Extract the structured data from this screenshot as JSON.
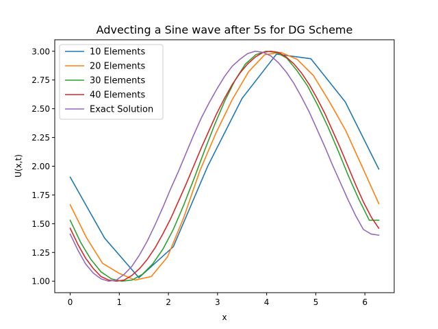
{
  "chart_data": {
    "type": "line",
    "title": "Advecting a Sine wave after 5s for DG Scheme",
    "xlabel": "x",
    "ylabel": "U(x,t)",
    "xlim": [
      -0.3142,
      6.597
    ],
    "ylim": [
      0.9,
      3.1
    ],
    "xticks": [
      0,
      1,
      2,
      3,
      4,
      5,
      6
    ],
    "xtick_labels": [
      "0",
      "1",
      "2",
      "3",
      "4",
      "5",
      "6"
    ],
    "yticks": [
      1.0,
      1.25,
      1.5,
      1.75,
      2.0,
      2.25,
      2.5,
      2.75,
      3.0
    ],
    "ytick_labels": [
      "1.00",
      "1.25",
      "1.50",
      "1.75",
      "2.00",
      "2.25",
      "2.50",
      "2.75",
      "3.00"
    ],
    "grid": false,
    "legend_position": "top-left",
    "series": [
      {
        "name": "10 Elements",
        "color": "#1f77b4",
        "x": [
          0,
          0.7,
          1.4,
          2.1,
          2.8,
          3.5,
          4.2,
          4.9,
          5.6,
          6.283
        ],
        "y": [
          1.905,
          1.375,
          1.03,
          1.3,
          2.0,
          2.59,
          2.975,
          2.935,
          2.56,
          1.975
        ]
      },
      {
        "name": "20 Elements",
        "color": "#ff7f0e",
        "x": [
          0,
          0.33,
          0.66,
          0.99,
          1.32,
          1.65,
          1.98,
          2.31,
          2.64,
          2.97,
          3.3,
          3.63,
          3.96,
          4.29,
          4.62,
          4.95,
          5.28,
          5.61,
          5.94,
          6.283
        ],
        "y": [
          1.665,
          1.38,
          1.155,
          1.07,
          1.01,
          1.04,
          1.21,
          1.55,
          1.96,
          2.29,
          2.58,
          2.82,
          2.97,
          2.99,
          2.93,
          2.79,
          2.56,
          2.31,
          2.0,
          1.675
        ]
      },
      {
        "name": "30 Elements",
        "color": "#2ca02c",
        "x": [
          0,
          0.21,
          0.42,
          0.63,
          0.84,
          1.05,
          1.26,
          1.47,
          1.68,
          1.89,
          2.1,
          2.31,
          2.52,
          2.73,
          2.94,
          3.15,
          3.36,
          3.57,
          3.78,
          3.99,
          4.2,
          4.41,
          4.62,
          4.83,
          5.04,
          5.25,
          5.46,
          5.67,
          5.88,
          6.09,
          6.283
        ],
        "y": [
          1.53,
          1.34,
          1.19,
          1.08,
          1.02,
          1.0,
          1.01,
          1.06,
          1.15,
          1.28,
          1.45,
          1.66,
          1.89,
          2.13,
          2.36,
          2.57,
          2.75,
          2.89,
          2.97,
          3.0,
          2.99,
          2.94,
          2.83,
          2.7,
          2.53,
          2.34,
          2.13,
          1.91,
          1.71,
          1.53,
          1.53
        ]
      },
      {
        "name": "40 Elements",
        "color": "#d62728",
        "x": [
          0,
          0.157,
          0.314,
          0.471,
          0.628,
          0.785,
          0.942,
          1.1,
          1.257,
          1.414,
          1.571,
          1.728,
          1.885,
          2.042,
          2.199,
          2.356,
          2.513,
          2.67,
          2.827,
          2.985,
          3.142,
          3.299,
          3.456,
          3.613,
          3.77,
          3.927,
          4.084,
          4.241,
          4.398,
          4.555,
          4.712,
          4.869,
          5.027,
          5.184,
          5.341,
          5.498,
          5.655,
          5.812,
          5.969,
          6.126,
          6.283
        ],
        "y": [
          1.46,
          1.32,
          1.2,
          1.11,
          1.04,
          1.01,
          1.0,
          1.01,
          1.05,
          1.11,
          1.19,
          1.29,
          1.41,
          1.54,
          1.69,
          1.84,
          2.0,
          2.16,
          2.31,
          2.46,
          2.59,
          2.71,
          2.81,
          2.89,
          2.95,
          2.99,
          3.0,
          2.99,
          2.95,
          2.89,
          2.81,
          2.71,
          2.59,
          2.46,
          2.31,
          2.16,
          2.0,
          1.84,
          1.69,
          1.56,
          1.46
        ]
      },
      {
        "name": "Exact Solution",
        "color": "#9467bd",
        "x": [
          0,
          0.157,
          0.314,
          0.471,
          0.628,
          0.785,
          0.942,
          1.1,
          1.257,
          1.414,
          1.571,
          1.728,
          1.885,
          2.042,
          2.199,
          2.356,
          2.513,
          2.67,
          2.827,
          2.985,
          3.142,
          3.299,
          3.456,
          3.613,
          3.77,
          3.927,
          4.084,
          4.241,
          4.398,
          4.555,
          4.712,
          4.869,
          5.027,
          5.184,
          5.341,
          5.498,
          5.655,
          5.812,
          5.969,
          6.126,
          6.283
        ],
        "y": [
          1.41,
          1.27,
          1.15,
          1.07,
          1.02,
          1.0,
          1.01,
          1.06,
          1.13,
          1.23,
          1.35,
          1.49,
          1.64,
          1.8,
          1.95,
          2.11,
          2.27,
          2.42,
          2.55,
          2.67,
          2.78,
          2.87,
          2.93,
          2.98,
          3.0,
          2.99,
          2.96,
          2.9,
          2.82,
          2.72,
          2.6,
          2.47,
          2.32,
          2.17,
          2.01,
          1.86,
          1.71,
          1.57,
          1.45,
          1.41,
          1.4
        ]
      }
    ]
  }
}
